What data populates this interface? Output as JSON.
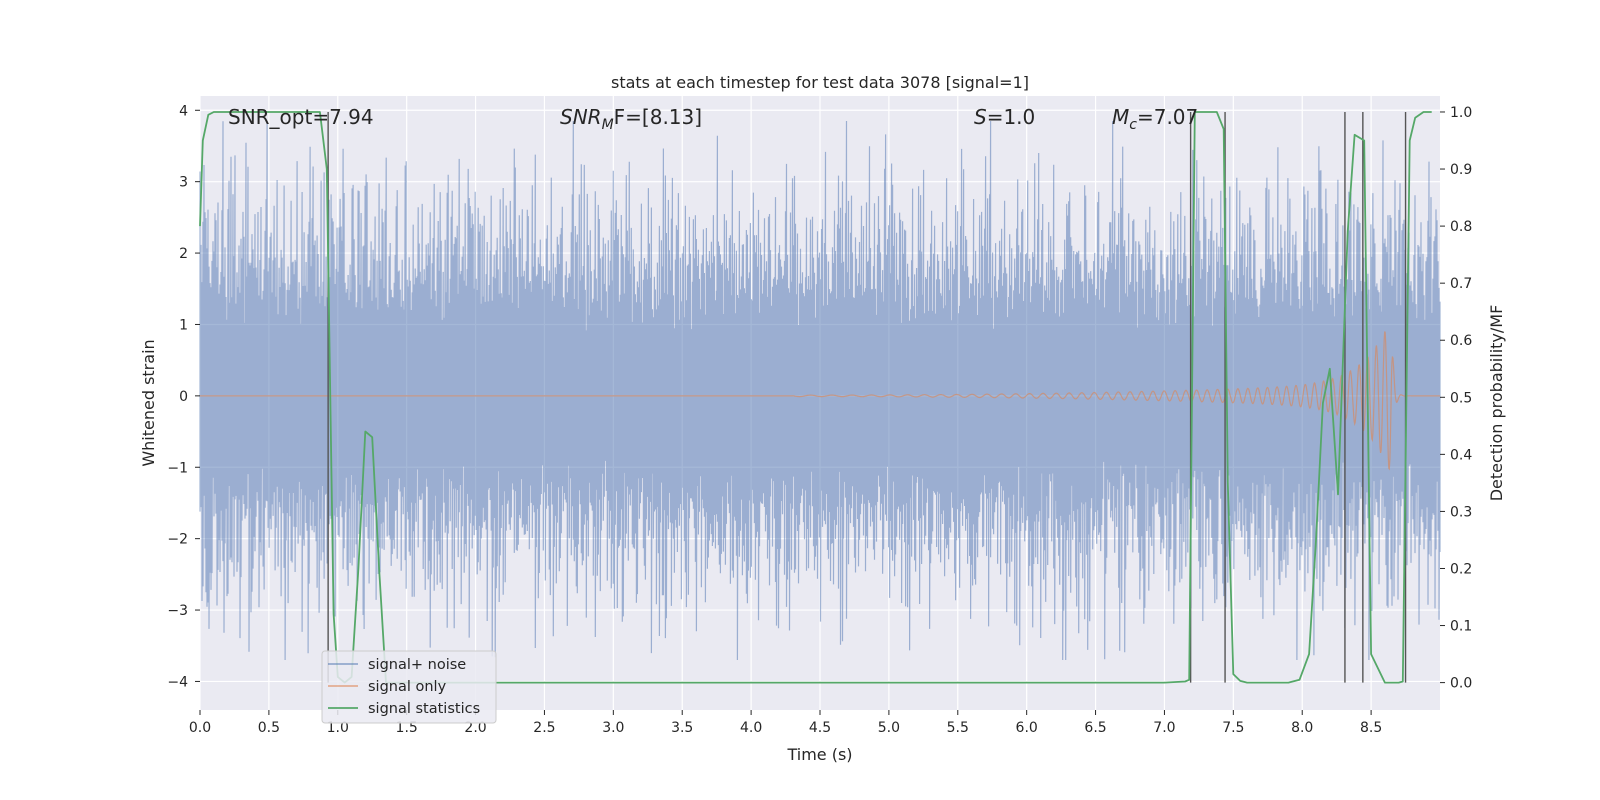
{
  "chart_data": {
    "type": "line",
    "title": "stats at each timestep for test data 3078 [signal=1]",
    "xlabel": "Time (s)",
    "ylabel_left": "Whitened strain",
    "ylabel_right": "Detection probability/MF",
    "xlim": [
      0.0,
      9.0
    ],
    "ylim_left": [
      -4.4,
      4.2
    ],
    "ylim_right": [
      -0.048,
      1.028
    ],
    "x_ticks": [
      "0.0",
      "0.5",
      "1.0",
      "1.5",
      "2.0",
      "2.5",
      "3.0",
      "3.5",
      "4.0",
      "4.5",
      "5.0",
      "5.5",
      "6.0",
      "6.5",
      "7.0",
      "7.5",
      "8.0",
      "8.5"
    ],
    "y_ticks_left": [
      "4",
      "3",
      "2",
      "1",
      "0",
      "−1",
      "−2",
      "−3",
      "−4"
    ],
    "y_ticks_right": [
      "1.0",
      "0.9",
      "0.8",
      "0.7",
      "0.6",
      "0.5",
      "0.4",
      "0.3",
      "0.2",
      "0.1",
      "0.0"
    ],
    "grid": true,
    "legend_position": "lower-left",
    "annotations": {
      "snr_opt": "SNR_opt=7.94",
      "snr_mf": "SNR_MF=[8.13]",
      "s_stat": "S=1.0",
      "mc": "M_c=7.07"
    },
    "series": [
      {
        "name": "signal+ noise",
        "color": "#4c72b0",
        "envelope": {
          "min": -3.7,
          "max": 3.85,
          "typical_abs": 1.6
        }
      },
      {
        "name": "signal only",
        "color": "#dd8452",
        "chirp": {
          "start": 4.3,
          "peak_time": 8.65,
          "peak_amplitude": 1.15,
          "lower_peak": -0.85
        }
      },
      {
        "name": "signal statistics",
        "color": "#55a868",
        "x": [
          0.0,
          0.02,
          0.06,
          0.1,
          0.2,
          0.3,
          0.4,
          0.5,
          0.6,
          0.7,
          0.8,
          0.87,
          0.92,
          0.97,
          1.0,
          1.05,
          1.1,
          1.15,
          1.2,
          1.25,
          1.3,
          1.35,
          1.4,
          1.5,
          2.0,
          3.0,
          4.0,
          5.0,
          6.0,
          7.0,
          7.15,
          7.18,
          7.22,
          7.3,
          7.38,
          7.43,
          7.46,
          7.5,
          7.55,
          7.6,
          7.7,
          7.8,
          7.9,
          7.98,
          8.05,
          8.1,
          8.15,
          8.2,
          8.26,
          8.33,
          8.38,
          8.45,
          8.5,
          8.6,
          8.7,
          8.73,
          8.78,
          8.82,
          8.88,
          8.94
        ],
        "y": [
          0.8,
          0.95,
          0.995,
          1.0,
          1.0,
          1.0,
          1.0,
          1.0,
          1.0,
          1.0,
          1.0,
          1.0,
          0.9,
          0.12,
          0.01,
          0.0,
          0.01,
          0.2,
          0.44,
          0.43,
          0.2,
          0.0,
          0.0,
          0.0,
          0.0,
          0.0,
          0.0,
          0.0,
          0.0,
          0.0,
          0.002,
          0.005,
          1.0,
          1.0,
          1.0,
          0.97,
          0.35,
          0.015,
          0.003,
          0.0,
          0.0,
          0.0,
          0.0,
          0.005,
          0.05,
          0.25,
          0.49,
          0.55,
          0.33,
          0.79,
          0.96,
          0.95,
          0.05,
          0.0,
          0.0,
          0.002,
          0.95,
          0.99,
          1.0,
          1.0
        ]
      }
    ],
    "vertical_markers_x": [
      0.93,
      7.19,
      7.44,
      8.31,
      8.44,
      8.75
    ]
  }
}
